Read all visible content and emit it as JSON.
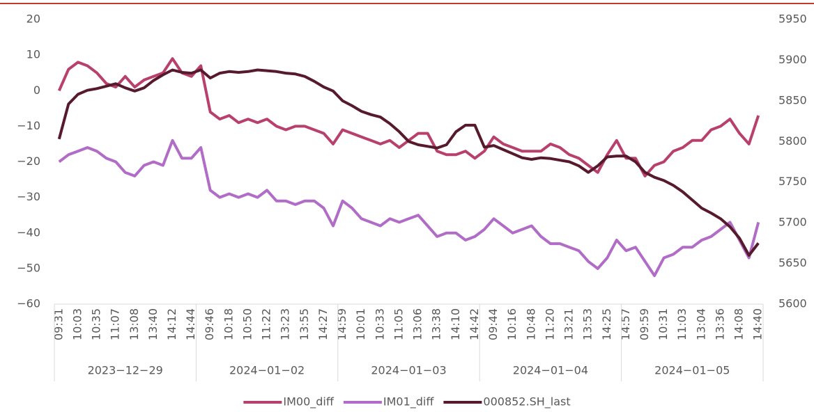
{
  "chart_data": {
    "type": "line",
    "categories": [
      "09:31",
      null,
      "10:03",
      null,
      "10:35",
      null,
      "11:07",
      null,
      "13:08",
      null,
      "13:40",
      null,
      "14:12",
      null,
      "14:44",
      null,
      "09:46",
      null,
      "10:18",
      null,
      "10:50",
      null,
      "11:22",
      null,
      "13:23",
      null,
      "13:55",
      null,
      "14:27",
      null,
      "14:59",
      null,
      "10:01",
      null,
      "10:33",
      null,
      "11:05",
      null,
      "13:06",
      null,
      "13:38",
      null,
      "14:10",
      null,
      "14:42",
      null,
      "09:44",
      null,
      "10:16",
      null,
      "10:48",
      null,
      "11:20",
      null,
      "13:21",
      null,
      "13:53",
      null,
      "14:25",
      null,
      "14:57",
      null,
      "09:59",
      null,
      "10:31",
      null,
      "11:03",
      null,
      "13:04",
      null,
      "13:36",
      null,
      "14:08",
      null,
      "14:40"
    ],
    "groups": [
      "2023−12−29",
      "2024−01−02",
      "2024−01−03",
      "2024−01−04",
      "2024−01−05"
    ],
    "series": [
      {
        "name": "IM00_diff",
        "color": "#b8406c",
        "values": [
          0,
          6,
          8,
          7,
          5,
          2,
          1,
          4,
          1,
          3,
          4,
          5,
          9,
          5,
          4,
          7,
          -6,
          -8,
          -7,
          -9,
          -8,
          -9,
          -8,
          -10,
          -11,
          -10,
          -10,
          -11,
          -12,
          -15,
          -11,
          -12,
          -13,
          -14,
          -15,
          -14,
          -16,
          -14,
          -12,
          -12,
          -17,
          -18,
          -18,
          -17,
          -19,
          -17,
          -13,
          -15,
          -16,
          -17,
          -17,
          -17,
          -15,
          -16,
          -18,
          -19,
          -21,
          -23,
          -18,
          -14,
          -19,
          -19,
          -24,
          -21,
          -20,
          -17,
          -16,
          -14,
          -14,
          -11,
          -10,
          -8,
          -12,
          -15,
          -7
        ]
      },
      {
        "name": "IM01_diff",
        "color": "#b06cc6",
        "values": [
          -20,
          -18,
          -17,
          -16,
          -17,
          -19,
          -20,
          -23,
          -24,
          -21,
          -20,
          -21,
          -14,
          -19,
          -19,
          -16,
          -28,
          -30,
          -29,
          -30,
          -29,
          -30,
          -28,
          -31,
          -31,
          -32,
          -31,
          -31,
          -33,
          -38,
          -31,
          -33,
          -36,
          -37,
          -38,
          -36,
          -37,
          -36,
          -35,
          -38,
          -41,
          -40,
          -40,
          -42,
          -41,
          -39,
          -36,
          -38,
          -40,
          -39,
          -38,
          -41,
          -43,
          -43,
          -44,
          -45,
          -48,
          -50,
          -47,
          -42,
          -45,
          -44,
          -48,
          -52,
          -47,
          -46,
          -44,
          -44,
          -42,
          -41,
          -39,
          -37,
          -42,
          -47,
          -37
        ]
      },
      {
        "name": "000852.SH_last",
        "color": "#561a2c",
        "axis": "y2",
        "values": [
          5803,
          5846,
          5858,
          5863,
          5865,
          5868,
          5871,
          5866,
          5862,
          5866,
          5875,
          5882,
          5888,
          5885,
          5884,
          5888,
          5878,
          5884,
          5886,
          5885,
          5886,
          5888,
          5887,
          5886,
          5884,
          5883,
          5880,
          5874,
          5867,
          5862,
          5850,
          5844,
          5837,
          5833,
          5830,
          5822,
          5812,
          5800,
          5796,
          5794,
          5792,
          5796,
          5812,
          5820,
          5820,
          5793,
          5795,
          5790,
          5785,
          5780,
          5778,
          5780,
          5779,
          5777,
          5775,
          5770,
          5762,
          5770,
          5781,
          5782,
          5782,
          5775,
          5762,
          5756,
          5752,
          5746,
          5738,
          5728,
          5718,
          5712,
          5705,
          5695,
          5681,
          5660,
          5675
        ]
      }
    ],
    "ylim": [
      -60,
      20
    ],
    "yticks": [
      {
        "value": -60,
        "label": "−60"
      },
      {
        "value": -50,
        "label": "−50"
      },
      {
        "value": -40,
        "label": "−40"
      },
      {
        "value": -30,
        "label": "−30"
      },
      {
        "value": -20,
        "label": "−20"
      },
      {
        "value": -10,
        "label": "−10"
      },
      0,
      10,
      20
    ],
    "y2lim": [
      5600,
      5950
    ],
    "y2ticks": [
      5600,
      5650,
      5700,
      5750,
      5800,
      5850,
      5900,
      5950
    ],
    "legend": "bottom"
  }
}
